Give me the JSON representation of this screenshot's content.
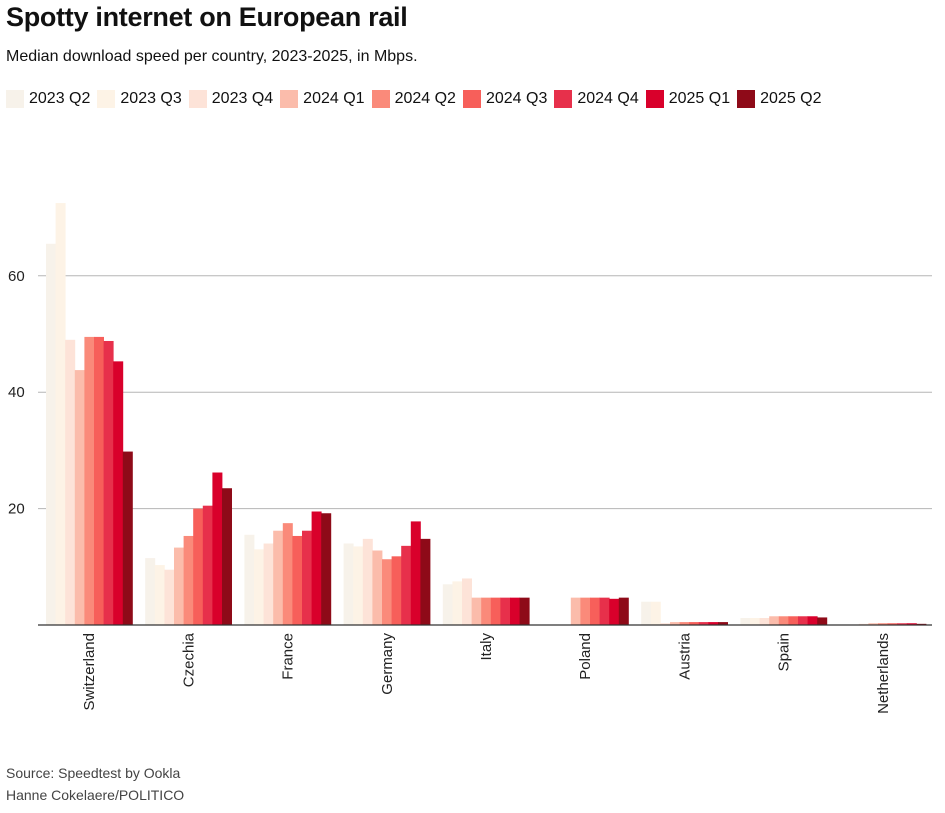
{
  "title": "Spotty internet on European rail",
  "subtitle": "Median download speed per country, 2023-2025, in Mbps.",
  "source": "Source: Speedtest by Ookla",
  "credit": "Hanne Cokelaere/POLITICO",
  "chart_data": {
    "type": "bar",
    "ylim": [
      0,
      72
    ],
    "yticks": [
      20,
      40,
      60
    ],
    "grid": true,
    "legend_position": "top",
    "categories": [
      "Switzerland",
      "Czechia",
      "France",
      "Germany",
      "Italy",
      "Poland",
      "Austria",
      "Spain",
      "Netherlands"
    ],
    "series": [
      {
        "name": "2023 Q2",
        "color": "#f7f2ea",
        "values": [
          65.5,
          11.5,
          15.5,
          14.0,
          7.0,
          0,
          4.0,
          1.2,
          0.1
        ]
      },
      {
        "name": "2023 Q3",
        "color": "#fdf3e6",
        "values": [
          72.5,
          10.3,
          13.0,
          13.5,
          7.5,
          0,
          4.0,
          1.2,
          0.1
        ]
      },
      {
        "name": "2023 Q4",
        "color": "#fde3d8",
        "values": [
          49.0,
          9.5,
          14.0,
          14.8,
          8.0,
          0,
          0.3,
          1.2,
          0.2
        ]
      },
      {
        "name": "2024 Q1",
        "color": "#fbbcab",
        "values": [
          43.8,
          13.3,
          16.2,
          12.8,
          4.7,
          4.7,
          0.5,
          1.5,
          0.3
        ]
      },
      {
        "name": "2024 Q2",
        "color": "#fa8a7a",
        "values": [
          49.5,
          15.3,
          17.5,
          11.3,
          4.7,
          4.7,
          0.5,
          1.5,
          0.3
        ]
      },
      {
        "name": "2024 Q3",
        "color": "#f75f5a",
        "values": [
          49.5,
          20.0,
          15.3,
          11.8,
          4.7,
          4.7,
          0.5,
          1.5,
          0.3
        ]
      },
      {
        "name": "2024 Q4",
        "color": "#e7304b",
        "values": [
          48.8,
          20.5,
          16.2,
          13.6,
          4.7,
          4.7,
          0.5,
          1.5,
          0.3
        ]
      },
      {
        "name": "2025 Q1",
        "color": "#d9002b",
        "values": [
          45.3,
          26.2,
          19.5,
          17.8,
          4.7,
          4.5,
          0.5,
          1.5,
          0.3
        ]
      },
      {
        "name": "2025 Q2",
        "color": "#8e0a18",
        "values": [
          29.8,
          23.5,
          19.2,
          14.8,
          4.7,
          4.7,
          0.5,
          1.3,
          0.2
        ]
      }
    ]
  }
}
